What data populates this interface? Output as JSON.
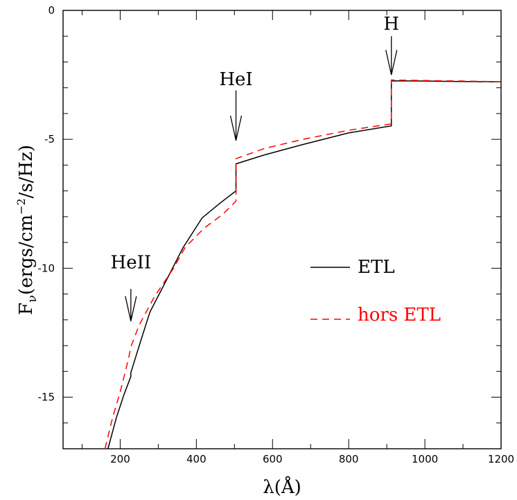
{
  "chart_data": {
    "type": "line",
    "title": "",
    "xlabel": "λ(Å)",
    "ylabel_parts": {
      "main": "F",
      "sub": "ν",
      "paren_open": "(ergs/cm",
      "sup": "−2",
      "paren_close": "/s/Hz)"
    },
    "xlim": [
      50,
      1200
    ],
    "ylim": [
      -17,
      0
    ],
    "x_ticks": [
      200,
      400,
      600,
      800,
      1000,
      1200
    ],
    "y_ticks": [
      0,
      -5,
      -10,
      -15
    ],
    "x_tick_labels": [
      "200",
      "400",
      "600",
      "800",
      "1000",
      "1200"
    ],
    "y_tick_labels": [
      "0",
      "-5",
      "-10",
      "-15"
    ],
    "grid": false,
    "legend_position": "right",
    "series": [
      {
        "name": "ETL",
        "color": "#000000",
        "dash": "solid",
        "points": [
          [
            168,
            -17
          ],
          [
            190,
            -15.8
          ],
          [
            210,
            -14.9
          ],
          [
            228,
            -14.2
          ],
          [
            228,
            -14.05
          ],
          [
            250,
            -13.0
          ],
          [
            278,
            -11.7
          ],
          [
            320,
            -10.5
          ],
          [
            365,
            -9.2
          ],
          [
            415,
            -8.05
          ],
          [
            460,
            -7.5
          ],
          [
            504,
            -7.0
          ],
          [
            504,
            -5.95
          ],
          [
            580,
            -5.6
          ],
          [
            680,
            -5.2
          ],
          [
            800,
            -4.75
          ],
          [
            912,
            -4.48
          ],
          [
            912,
            -2.73
          ],
          [
            1000,
            -2.74
          ],
          [
            1100,
            -2.76
          ],
          [
            1200,
            -2.77
          ]
        ]
      },
      {
        "name": "hors ETL",
        "color": "#ff0000",
        "dash": "dashed",
        "points": [
          [
            160,
            -17
          ],
          [
            180,
            -15.8
          ],
          [
            200,
            -14.8
          ],
          [
            222,
            -13.5
          ],
          [
            228,
            -13.05
          ],
          [
            250,
            -12.2
          ],
          [
            290,
            -11.1
          ],
          [
            340,
            -10.0
          ],
          [
            370,
            -9.2
          ],
          [
            420,
            -8.45
          ],
          [
            470,
            -7.9
          ],
          [
            504,
            -7.4
          ],
          [
            504,
            -5.75
          ],
          [
            580,
            -5.35
          ],
          [
            680,
            -5.0
          ],
          [
            800,
            -4.65
          ],
          [
            912,
            -4.4
          ],
          [
            912,
            -2.7
          ],
          [
            1000,
            -2.72
          ],
          [
            1100,
            -2.74
          ],
          [
            1200,
            -2.77
          ]
        ]
      }
    ],
    "annotations": [
      {
        "label": "HeII",
        "x": 228,
        "arrow_top": -10.8,
        "arrow_bottom": -12.05,
        "label_y": -10.0
      },
      {
        "label": "HeI",
        "x": 504,
        "arrow_top": -3.1,
        "arrow_bottom": -5.05,
        "label_y": -2.9
      },
      {
        "label": "H",
        "x": 912,
        "arrow_top": -1.0,
        "arrow_bottom": -2.5,
        "label_y": -0.75
      }
    ]
  }
}
